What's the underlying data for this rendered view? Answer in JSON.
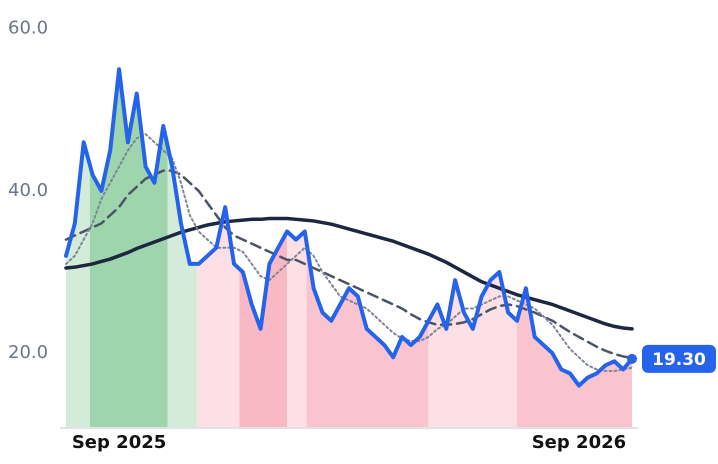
{
  "chart_data": {
    "type": "line",
    "x": [
      0,
      1,
      2,
      3,
      4,
      5,
      6,
      7,
      8,
      9,
      10,
      11,
      12,
      13,
      14,
      15,
      16,
      17,
      18,
      19,
      20,
      21,
      22,
      23,
      24,
      25,
      26,
      27,
      28,
      29,
      30,
      31,
      32,
      33,
      34,
      35,
      36,
      37,
      38,
      39,
      40,
      41,
      42,
      43,
      44,
      45,
      46,
      47,
      48,
      49,
      50,
      51,
      52,
      53,
      54,
      55,
      56,
      57,
      58,
      59,
      60,
      61,
      62,
      63,
      64
    ],
    "series": [
      {
        "color": "#2563eb",
        "style": "solid",
        "width": 4,
        "last_value_label": "19.30",
        "values": [
          32,
          36,
          46,
          42,
          40,
          45,
          55,
          46,
          52,
          43,
          41,
          48,
          43,
          36,
          31,
          31,
          32,
          33,
          38,
          31,
          30,
          26,
          23,
          31,
          33,
          35,
          34,
          35,
          28,
          25,
          24,
          26,
          28,
          27,
          23,
          22,
          21,
          19.5,
          22,
          21,
          22,
          24,
          26,
          23,
          29,
          25,
          23,
          27,
          29,
          30,
          25,
          24,
          28,
          22,
          21,
          20,
          18,
          17.5,
          16,
          17,
          17.5,
          18.5,
          19,
          18,
          19.3
        ]
      },
      {
        "color": "#7d8597",
        "style": "dotted",
        "width": 2,
        "values": [
          31,
          32,
          34,
          36,
          39,
          41,
          43,
          45,
          46.5,
          47,
          46,
          45,
          44,
          41,
          37,
          35,
          34,
          33,
          33,
          33,
          32.5,
          31,
          29.5,
          29,
          30,
          31,
          32,
          33,
          32,
          30,
          28.5,
          27,
          26.5,
          26,
          25.5,
          24.5,
          23.5,
          22.5,
          21.8,
          21.5,
          21.5,
          22,
          23,
          23.5,
          24.5,
          25.5,
          25.5,
          26,
          26.5,
          27,
          27,
          26.5,
          26,
          25.5,
          24.5,
          23.5,
          22,
          20.5,
          19.5,
          18.5,
          18,
          17.8,
          17.8,
          18,
          18.2
        ]
      },
      {
        "color": "#4b5466",
        "style": "dashed",
        "width": 2.5,
        "values": [
          34,
          34.5,
          35,
          35.5,
          36,
          37,
          38,
          39.5,
          40.5,
          41.5,
          42,
          42.5,
          42.5,
          42,
          41,
          40,
          38.5,
          37,
          35.5,
          34.5,
          34,
          33.5,
          33,
          32.5,
          32,
          31.5,
          31.5,
          31,
          30.5,
          30,
          29.5,
          29,
          28.5,
          28,
          27.5,
          27,
          26.5,
          26,
          25.5,
          24.8,
          24.2,
          23.8,
          23.5,
          23.5,
          23.6,
          23.8,
          24.2,
          24.8,
          25.4,
          25.8,
          26,
          25.8,
          25.4,
          25,
          24.5,
          24,
          23.3,
          22.6,
          22,
          21.4,
          20.8,
          20.3,
          19.9,
          19.6,
          19.4
        ]
      },
      {
        "color": "#1e2740",
        "style": "solid",
        "width": 3.5,
        "values": [
          30.5,
          30.6,
          30.8,
          31,
          31.3,
          31.6,
          32,
          32.4,
          32.9,
          33.3,
          33.7,
          34.1,
          34.5,
          34.9,
          35.2,
          35.5,
          35.8,
          36,
          36.2,
          36.3,
          36.4,
          36.5,
          36.5,
          36.6,
          36.6,
          36.6,
          36.5,
          36.4,
          36.3,
          36.1,
          35.9,
          35.6,
          35.3,
          35,
          34.7,
          34.4,
          34.1,
          33.8,
          33.4,
          33,
          32.6,
          32.2,
          31.7,
          31.2,
          30.6,
          30,
          29.4,
          28.8,
          28.4,
          28,
          27.6,
          27.2,
          26.9,
          26.6,
          26.3,
          26,
          25.6,
          25.2,
          24.8,
          24.4,
          24,
          23.6,
          23.3,
          23.1,
          23
        ]
      }
    ],
    "bands": [
      {
        "start": 0,
        "end": 2.7,
        "color": "#d3ecd9"
      },
      {
        "start": 2.7,
        "end": 11.5,
        "color": "#9fd5ad"
      },
      {
        "start": 11.5,
        "end": 14.8,
        "color": "#d3ecd9"
      },
      {
        "start": 14.8,
        "end": 19.6,
        "color": "#fde0e5"
      },
      {
        "start": 19.6,
        "end": 25,
        "color": "#f8b8c4"
      },
      {
        "start": 25,
        "end": 27.2,
        "color": "#fde0e5"
      },
      {
        "start": 27.2,
        "end": 41,
        "color": "#f9c4ce"
      },
      {
        "start": 41,
        "end": 51,
        "color": "#fde0e5"
      },
      {
        "start": 51,
        "end": 64,
        "color": "#f9c4ce"
      }
    ],
    "xlim": [
      0,
      64
    ],
    "xticks": [
      {
        "value": 6,
        "label": "Sep 2025"
      },
      {
        "value": 58,
        "label": "Sep 2026"
      }
    ],
    "ylim": [
      10.9,
      62.3
    ],
    "yticks": [
      {
        "value": 20,
        "label": "20.0"
      },
      {
        "value": 40,
        "label": "40.0"
      },
      {
        "value": 60,
        "label": "60.0"
      }
    ]
  }
}
